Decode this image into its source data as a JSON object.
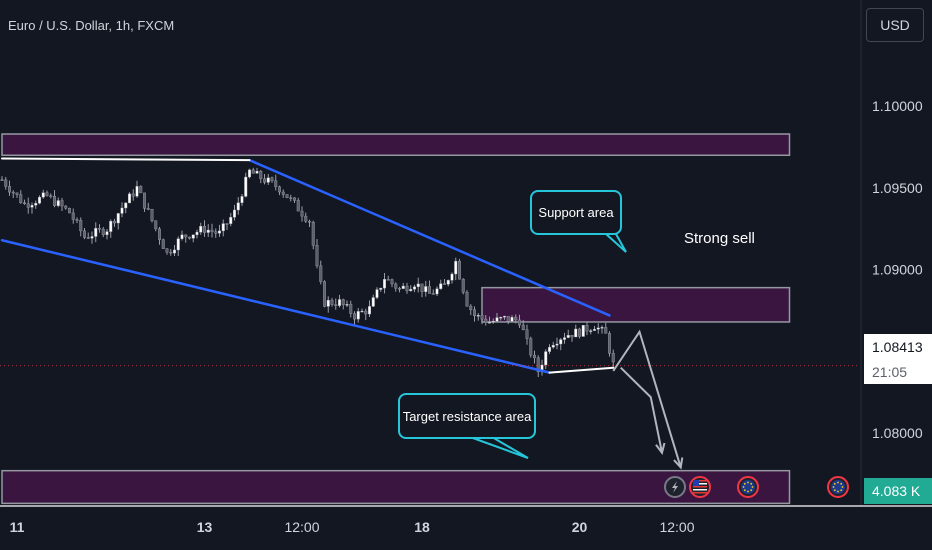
{
  "header": {
    "symbol_title": "Euro / U.S. Dollar, 1h, FXCM",
    "currency_label": "USD"
  },
  "price_scale": {
    "last_price": "1.08413",
    "countdown": "21:05",
    "volume_label": "4.083 K"
  },
  "annotations": {
    "support_label": "Support area",
    "target_label": "Target resistance area",
    "signal_label": "Strong sell"
  },
  "colors": {
    "background": "#131722",
    "zone_fill": "#3a1540",
    "zone_border": "#9598a1",
    "trendline": "#2962ff",
    "flat_line": "#ffffff",
    "callout_border": "#26c6da",
    "projection": "#b2b5be",
    "volume_badge": "#22ab94"
  },
  "event_icons": [
    "lightning-icon",
    "us-flag-icon",
    "eu-flag-icon",
    "eu-flag-icon"
  ],
  "chart_data": {
    "type": "candlestick",
    "x_tick_labels": [
      {
        "label": "11",
        "bar": 4
      },
      {
        "label": "13",
        "bar": 54
      },
      {
        "label": "12:00",
        "bar": 80
      },
      {
        "label": "18",
        "bar": 112
      },
      {
        "label": "20",
        "bar": 154
      },
      {
        "label": "12:00",
        "bar": 180
      }
    ],
    "y_ticks": [
      1.08,
      1.085,
      1.09,
      1.095,
      1.1
    ],
    "y_tick_labels": [
      "1.08000",
      "1.08500",
      "1.09000",
      "1.09500",
      "1.10000"
    ],
    "ylim": [
      1.0756,
      1.1065
    ],
    "last_price": 1.08413,
    "close_path": [
      [
        0,
        1.0955
      ],
      [
        6,
        1.094
      ],
      [
        12,
        1.0945
      ],
      [
        18,
        1.0935
      ],
      [
        22,
        1.092
      ],
      [
        28,
        1.0925
      ],
      [
        32,
        1.0938
      ],
      [
        36,
        1.095
      ],
      [
        40,
        1.093
      ],
      [
        44,
        1.091
      ],
      [
        48,
        1.092
      ],
      [
        54,
        1.0925
      ],
      [
        58,
        1.0922
      ],
      [
        62,
        1.0935
      ],
      [
        66,
        1.096
      ],
      [
        70,
        1.0955
      ],
      [
        74,
        1.095
      ],
      [
        78,
        1.094
      ],
      [
        82,
        1.093
      ],
      [
        84,
        1.09
      ],
      [
        86,
        1.088
      ],
      [
        90,
        1.088
      ],
      [
        94,
        1.0872
      ],
      [
        98,
        1.0876
      ],
      [
        102,
        1.0895
      ],
      [
        106,
        1.0888
      ],
      [
        110,
        1.0892
      ],
      [
        114,
        1.0885
      ],
      [
        118,
        1.089
      ],
      [
        121,
        1.0905
      ],
      [
        124,
        1.088
      ],
      [
        126,
        1.0872
      ],
      [
        130,
        1.0868
      ],
      [
        134,
        1.087
      ],
      [
        138,
        1.0869
      ],
      [
        140,
        1.0855
      ],
      [
        143,
        1.0838
      ],
      [
        146,
        1.0855
      ],
      [
        150,
        1.086
      ],
      [
        154,
        1.0862
      ],
      [
        158,
        1.0866
      ],
      [
        161,
        1.086
      ],
      [
        163,
        1.0842
      ]
    ],
    "zones": [
      {
        "name": "top",
        "from": 1.097,
        "to": 1.0983,
        "start_bar": 0,
        "end_bar": 210
      },
      {
        "name": "support",
        "from": 1.0868,
        "to": 1.0889,
        "start_bar": 128,
        "end_bar": 210
      },
      {
        "name": "target",
        "from": 1.0757,
        "to": 1.0777,
        "start_bar": 0,
        "end_bar": 210
      }
    ],
    "trendlines": [
      {
        "name": "upper-channel",
        "from": [
          66,
          1.0967
        ],
        "to": [
          162,
          1.0872
        ]
      },
      {
        "name": "lower-channel",
        "from": [
          0,
          1.0918
        ],
        "to": [
          146,
          1.0837
        ]
      },
      {
        "name": "top-flat",
        "from": [
          0,
          1.0968
        ],
        "to": [
          66,
          1.0967
        ]
      },
      {
        "name": "bottom-flat",
        "from": [
          146,
          1.0837
        ],
        "to": [
          163,
          1.084
        ]
      }
    ],
    "projection": [
      [
        163,
        1.0838
      ],
      [
        170,
        1.0862
      ],
      [
        181,
        1.0779
      ]
    ],
    "projection2": [
      [
        165,
        1.084
      ],
      [
        173,
        1.0822
      ],
      [
        176,
        1.0788
      ]
    ]
  }
}
